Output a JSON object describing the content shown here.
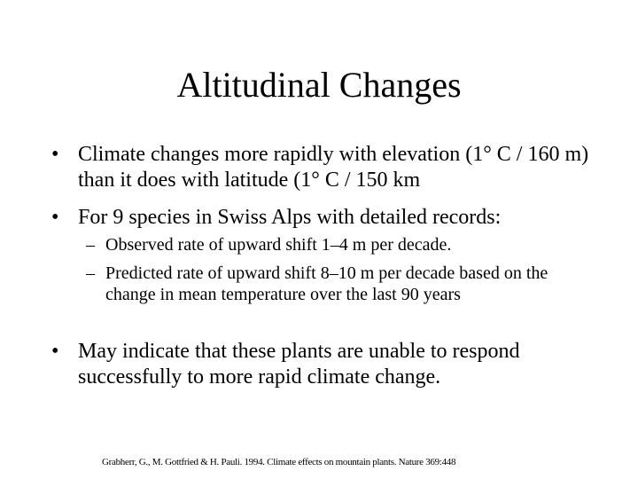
{
  "title": "Altitudinal Changes",
  "bullets": [
    "Climate changes more rapidly with elevation (1° C / 160 m) than it does with latitude (1° C / 150 km",
    "For 9 species in Swiss Alps with detailed records:",
    "May indicate that these plants are unable to respond successfully to more rapid climate change."
  ],
  "sub_bullets": [
    "Observed rate of upward shift 1–4 m per decade.",
    "Predicted rate of upward shift 8–10 m per decade based on the change in mean temperature over the last 90 years"
  ],
  "citation": "Grabherr, G., M. Gottfried & H. Pauli. 1994. Climate effects on mountain plants. Nature 369:448"
}
